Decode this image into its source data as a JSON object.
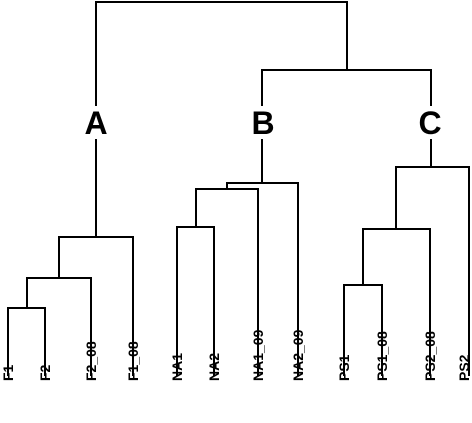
{
  "clusters": [
    {
      "id": "A",
      "label": "A"
    },
    {
      "id": "B",
      "label": "B"
    },
    {
      "id": "C",
      "label": "C"
    }
  ],
  "leaves": [
    "F1",
    "F2",
    "F2_08",
    "F1_08",
    "NA1",
    "NA2",
    "NA1_09",
    "NA2_09",
    "PS1",
    "PS1_08",
    "PS2_08",
    "PS2"
  ],
  "colors": {
    "line": "#000000",
    "text": "#000000",
    "background": "#ffffff"
  }
}
